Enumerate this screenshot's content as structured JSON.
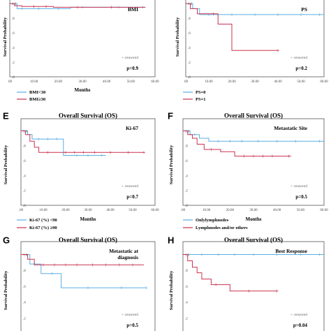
{
  "chart_data": [
    {
      "id": "bmi",
      "panel_letter": "",
      "type": "line",
      "step": true,
      "title": "",
      "box_label": "BMI",
      "xlabel": "Months",
      "ylabel": "Survival Probability",
      "xlim": [
        0,
        60
      ],
      "ylim": [
        0,
        1.0
      ],
      "x_ticks": [
        ".00",
        "10.00",
        "20.00",
        "30.00",
        "40.00",
        "50.00",
        "60.00"
      ],
      "y_ticks": [
        ".0",
        ".2",
        ".4",
        ".6",
        ".8",
        "1.0"
      ],
      "series": [
        {
          "name": "BMI<30",
          "color": "#5aaee0",
          "x": [
            0,
            3,
            8,
            25,
            56
          ],
          "y": [
            1.0,
            0.93,
            0.93,
            0.95,
            0.95
          ],
          "censor_x": [
            5,
            12,
            20,
            30,
            45,
            55
          ]
        },
        {
          "name": "BMI≥30",
          "color": "#c9324f",
          "x": [
            0,
            2,
            5,
            18,
            56
          ],
          "y": [
            1.0,
            0.97,
            0.96,
            0.95,
            0.95
          ],
          "censor_x": [
            10,
            15,
            28,
            42
          ]
        }
      ],
      "censored_label": "+ censored",
      "pvalue": "p=0.9"
    },
    {
      "id": "ps",
      "panel_letter": "",
      "type": "line",
      "step": true,
      "title": "",
      "box_label": "PS",
      "xlabel": "",
      "ylabel": "Survival Probability",
      "xlim": [
        0,
        60
      ],
      "ylim": [
        0,
        1.0
      ],
      "x_ticks": [
        ".00",
        "10.00",
        "20.00",
        "30.00",
        "40.00",
        "50.00",
        "60.00"
      ],
      "y_ticks": [
        ".0",
        ".2",
        ".4",
        ".6",
        ".8",
        "1.0"
      ],
      "series": [
        {
          "name": "PS=0",
          "color": "#5aaee0",
          "x": [
            0,
            3,
            6,
            60
          ],
          "y": [
            1.0,
            0.93,
            0.85,
            0.85
          ],
          "censor_x": [
            10,
            20,
            30,
            40,
            50,
            58
          ]
        },
        {
          "name": "PS=1",
          "color": "#c9324f",
          "x": [
            0,
            2,
            5,
            14,
            20,
            40
          ],
          "y": [
            1.0,
            0.93,
            0.86,
            0.72,
            0.36,
            0.36
          ],
          "censor_x": [
            12,
            40
          ]
        }
      ],
      "censored_label": "+ censored",
      "pvalue": "p=0.2"
    },
    {
      "id": "ki67",
      "panel_letter": "E",
      "type": "line",
      "step": true,
      "title": "Overall Survival (OS)",
      "box_label": "Ki-67",
      "xlabel": "Months",
      "ylabel": "Survival Probability",
      "xlim": [
        0,
        60
      ],
      "ylim": [
        0,
        1.0
      ],
      "x_ticks": [
        ".00",
        "10.00",
        "20.00",
        "30.00",
        "40.00",
        "50.00",
        "60.00"
      ],
      "y_ticks": [
        ".0",
        ".2",
        ".4",
        ".6",
        ".8",
        "1.0"
      ],
      "series": [
        {
          "name": "Ki-67 (%) <90",
          "color": "#5aaee0",
          "x": [
            0,
            3,
            5,
            19,
            38
          ],
          "y": [
            1.0,
            0.95,
            0.89,
            0.67,
            0.67
          ],
          "censor_x": [
            8,
            12,
            16,
            25,
            30,
            36
          ]
        },
        {
          "name": "Ki-67 (%) ≥90",
          "color": "#c9324f",
          "x": [
            0,
            2,
            4,
            6,
            8,
            55
          ],
          "y": [
            1.0,
            0.95,
            0.86,
            0.78,
            0.71,
            0.71
          ],
          "censor_x": [
            12,
            20,
            24,
            28,
            33,
            40,
            48,
            55
          ]
        }
      ],
      "censored_label": "+ censored",
      "pvalue": "p=0.7"
    },
    {
      "id": "metastatic_site",
      "panel_letter": "F",
      "type": "line",
      "step": true,
      "title": "Overall Survival (OS)",
      "box_label": "Metastatic Site",
      "xlabel": "Months",
      "ylabel": "Survival Probability",
      "xlim": [
        0,
        60
      ],
      "ylim": [
        0,
        1.0
      ],
      "x_ticks": [
        ".00",
        "10.00",
        "20.00",
        "30.00",
        "40.00",
        "50.00",
        "60.00"
      ],
      "y_ticks": [
        ".0",
        ".2",
        ".4",
        ".6",
        ".8",
        "1.0"
      ],
      "series": [
        {
          "name": "Onlylymphnodes",
          "color": "#5aaee0",
          "x": [
            0,
            3,
            7,
            11,
            60
          ],
          "y": [
            1.0,
            0.95,
            0.9,
            0.86,
            0.86
          ],
          "censor_x": [
            5,
            15,
            20,
            25,
            32,
            40,
            48,
            58
          ]
        },
        {
          "name": "Lymphnodes and/or others",
          "color": "#c9324f",
          "x": [
            0,
            2,
            4,
            6,
            9,
            16,
            22,
            46
          ],
          "y": [
            1.0,
            0.95,
            0.9,
            0.82,
            0.75,
            0.72,
            0.66,
            0.66
          ],
          "censor_x": [
            12,
            26,
            30,
            34,
            38,
            45
          ]
        }
      ],
      "censored_label": "+ censored",
      "pvalue": "p=0.5"
    },
    {
      "id": "metastatic_diagnosis",
      "panel_letter": "G",
      "type": "line",
      "step": true,
      "title": "Overall Survival (OS)",
      "box_label": "Metastatic at diagnosis",
      "xlabel": "",
      "ylabel": "Survival Probability",
      "xlim": [
        0,
        60
      ],
      "ylim": [
        0,
        1.0
      ],
      "x_ticks": [],
      "y_ticks": [
        ".0",
        ".2",
        ".4",
        ".6",
        ".8",
        "1.0"
      ],
      "series": [
        {
          "name": "",
          "color": "#5aaee0",
          "x": [
            0,
            4,
            9,
            18,
            56
          ],
          "y": [
            1.0,
            0.88,
            0.76,
            0.58,
            0.58
          ],
          "censor_x": [
            6,
            14,
            30,
            45,
            56
          ]
        },
        {
          "name": "",
          "color": "#c9324f",
          "x": [
            0,
            3,
            6,
            55
          ],
          "y": [
            1.0,
            0.94,
            0.87,
            0.87
          ],
          "censor_x": [
            10,
            15,
            20,
            25,
            32,
            38,
            44,
            50
          ]
        }
      ],
      "censored_label": "+ censored",
      "pvalue": "p=0.5"
    },
    {
      "id": "best_response",
      "panel_letter": "H",
      "type": "line",
      "step": true,
      "title": "Overall Survival (OS)",
      "box_label": "Best Response",
      "xlabel": "",
      "ylabel": "Survival Probability",
      "xlim": [
        0,
        60
      ],
      "ylim": [
        0,
        1.0
      ],
      "x_ticks": [],
      "y_ticks": [
        ".0",
        ".2",
        ".4",
        ".6",
        ".8",
        "1.0"
      ],
      "series": [
        {
          "name": "",
          "color": "#5aaee0",
          "x": [
            0,
            60
          ],
          "y": [
            1.0,
            1.0
          ],
          "censor_x": [
            8,
            15,
            22,
            30,
            40,
            50,
            58
          ]
        },
        {
          "name": "",
          "color": "#c9324f",
          "x": [
            0,
            2,
            4,
            6,
            8,
            12,
            20,
            40
          ],
          "y": [
            1.0,
            0.92,
            0.84,
            0.77,
            0.69,
            0.62,
            0.54,
            0.54
          ],
          "censor_x": [
            14,
            28,
            40
          ]
        }
      ],
      "censored_label": "+ censored",
      "pvalue": "p=0.04"
    }
  ]
}
